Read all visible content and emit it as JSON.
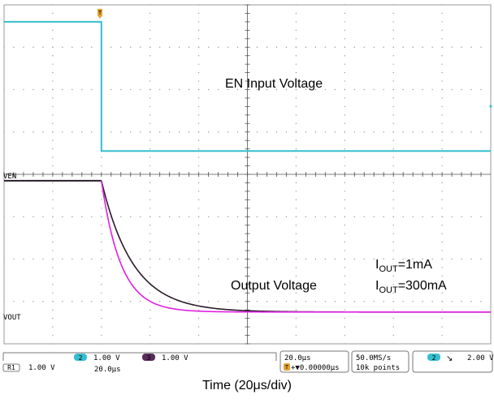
{
  "chart_data": {
    "type": "line",
    "annotations": {
      "en_title": "EN Input Voltage",
      "out_title": "Output Voltage",
      "i1_pre": "I",
      "i1_sub": "OUT",
      "i1_post": "=1mA",
      "i2_pre": "I",
      "i2_sub": "OUT",
      "i2_post": "=300mA"
    },
    "trace_labels": {
      "ven": "VEN",
      "vout": "VOUT"
    },
    "trigger_marker": "T",
    "colors": {
      "ch2": "#33bfd0",
      "ch3_black": "#2a1b2a",
      "ch3_magenta": "#e020e0",
      "grid": "#9a9a9a"
    },
    "x_axis": {
      "divisions": 10,
      "time_per_div": "20μs"
    },
    "y_axis": {
      "divisions": 8
    },
    "traces": {
      "en": {
        "high_div": 7.6,
        "low_div": 4.55,
        "step_div": 2.0
      },
      "vout_1mA": {
        "high_div": 3.85,
        "low_div": 0.75,
        "start_div": 2.0,
        "tau_div": 0.65
      },
      "vout_300mA": {
        "high_div": 3.85,
        "low_div": 0.75,
        "start_div": 2.0,
        "tau_div": 0.4
      }
    }
  },
  "status": {
    "ch2_badge": "2",
    "ch2_scale": "1.00 V",
    "ch3_badge": "3",
    "ch3_scale": "1.00 V",
    "r1_label": "R1",
    "r1_scale": "1.00 V",
    "r1_time": "20.0μs",
    "timebase": "20.0μs",
    "trig_pos_prefix": "T",
    "trig_pos": "+▼0.00000μs",
    "sample_rate": "50.0MS/s",
    "record": "10k points",
    "trig_ch": "2",
    "trig_edge": "↘",
    "trig_level": "2.00 V"
  },
  "caption": "Time (20μs/div)"
}
